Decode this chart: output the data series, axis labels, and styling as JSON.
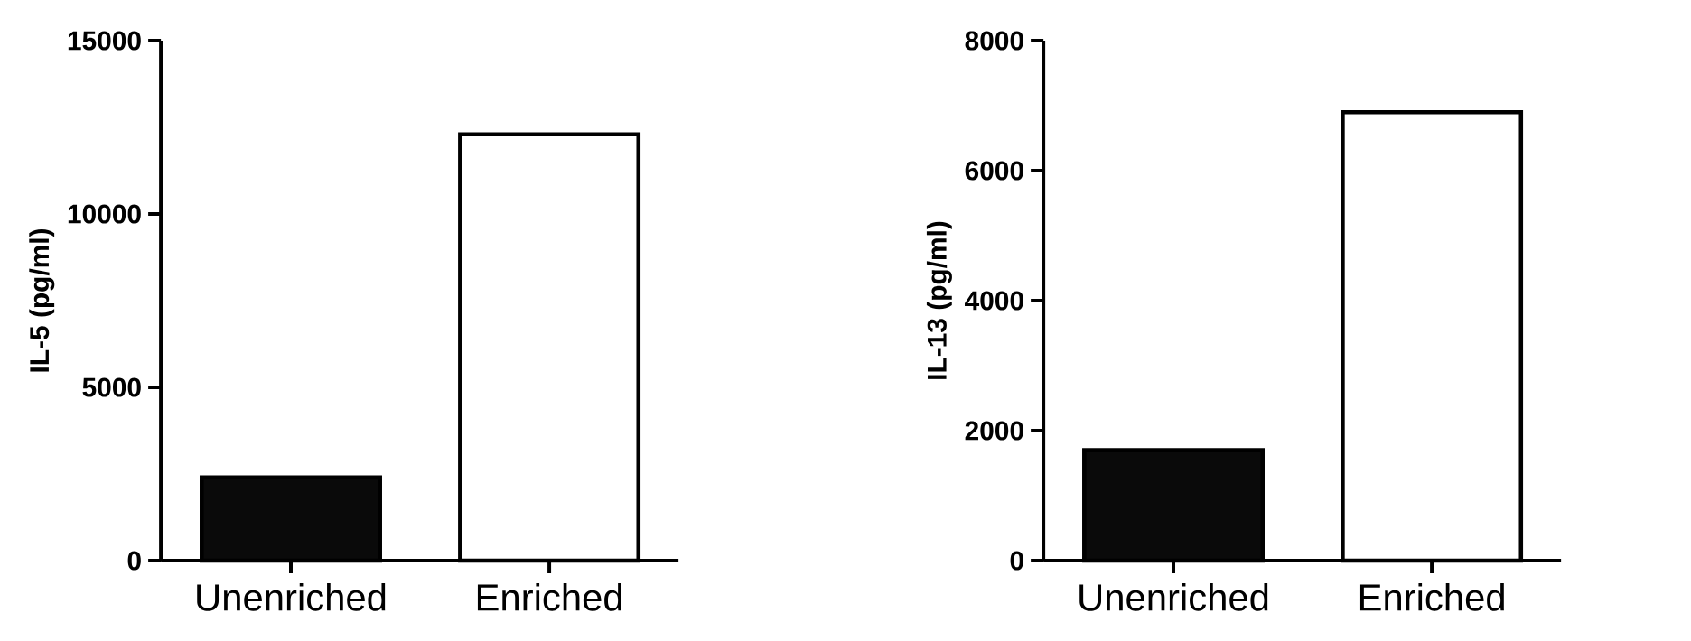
{
  "chart_data": [
    {
      "type": "bar",
      "categories": [
        "Unenriched",
        "Enriched"
      ],
      "values": [
        2400,
        12300
      ],
      "colors": [
        "#0a0a0a",
        "#ffffff"
      ],
      "ylabel": "IL-5 (pg/ml)",
      "ylim": [
        0,
        15000
      ],
      "yticks": [
        0,
        5000,
        10000,
        15000
      ]
    },
    {
      "type": "bar",
      "categories": [
        "Unenriched",
        "Enriched"
      ],
      "values": [
        1700,
        6900
      ],
      "colors": [
        "#0a0a0a",
        "#ffffff"
      ],
      "ylabel": "IL-13 (pg/ml)",
      "ylim": [
        0,
        8000
      ],
      "yticks": [
        0,
        2000,
        4000,
        6000,
        8000
      ]
    }
  ]
}
